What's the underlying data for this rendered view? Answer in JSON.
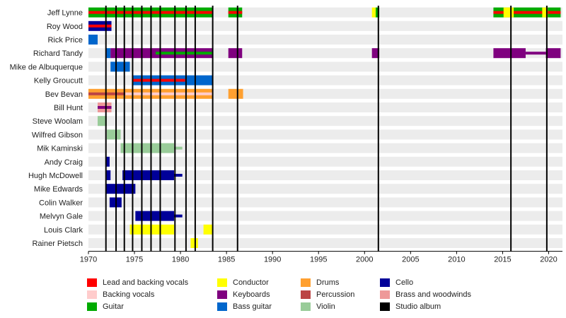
{
  "chart_data": {
    "type": "timeline",
    "title": "",
    "xlabel": "",
    "ylabel": "",
    "xlim": [
      1970,
      2021.5
    ],
    "x_ticks": [
      "1970",
      "1975",
      "1980",
      "1985",
      "1990",
      "1995",
      "2000",
      "2005",
      "2010",
      "2015",
      "2020"
    ],
    "colors": {
      "lead": "#ff0000",
      "backing": "#ffcccc",
      "guitar": "#00aa00",
      "conductor": "#ffff00",
      "keyboards": "#7f007f",
      "bass": "#0066cc",
      "drums": "#ffa030",
      "percussion": "#bb4444",
      "violin": "#99cc99",
      "cello": "#000099",
      "brass": "#ee9999",
      "album": "#000000"
    },
    "members": [
      {
        "name": "Jeff Lynne",
        "spans": [
          {
            "role": "guitar",
            "start": 1970,
            "end": 1983.5
          },
          {
            "role": "lead",
            "start": 1970,
            "end": 1983.5,
            "layer": "line"
          },
          {
            "role": "guitar",
            "start": 1985.2,
            "end": 1986.7
          },
          {
            "role": "lead",
            "start": 1985.2,
            "end": 1986.7,
            "layer": "line"
          },
          {
            "role": "guitar",
            "start": 2001.2,
            "end": 2001.6
          },
          {
            "role": "conductor",
            "start": 2000.8,
            "end": 2001.2
          },
          {
            "role": "guitar",
            "start": 2014,
            "end": 2021.3
          },
          {
            "role": "lead",
            "start": 2014,
            "end": 2021.3,
            "layer": "line"
          },
          {
            "role": "conductor",
            "start": 2015.1,
            "end": 2016.2
          },
          {
            "role": "conductor",
            "start": 2019.3,
            "end": 2019.9
          }
        ]
      },
      {
        "name": "Roy Wood",
        "spans": [
          {
            "role": "cello",
            "start": 1970,
            "end": 1972.5
          },
          {
            "role": "lead",
            "start": 1970,
            "end": 1972.5,
            "layer": "line"
          }
        ]
      },
      {
        "name": "Rick Price",
        "spans": [
          {
            "role": "bass",
            "start": 1970,
            "end": 1971
          }
        ]
      },
      {
        "name": "Richard Tandy",
        "spans": [
          {
            "role": "bass",
            "start": 1971.9,
            "end": 1972.4
          },
          {
            "role": "keyboards",
            "start": 1972.4,
            "end": 1983.5
          },
          {
            "role": "guitar",
            "start": 1977.3,
            "end": 1983.5,
            "layer": "line"
          },
          {
            "role": "keyboards",
            "start": 1985.2,
            "end": 1986.7
          },
          {
            "role": "keyboards",
            "start": 2000.8,
            "end": 2001.6
          },
          {
            "role": "keyboards",
            "start": 2014,
            "end": 2017.5
          },
          {
            "role": "keyboards",
            "start": 2017.5,
            "end": 2019.7,
            "layer": "line"
          },
          {
            "role": "keyboards",
            "start": 2019.7,
            "end": 2021.3
          }
        ]
      },
      {
        "name": "Mike de Albuquerque",
        "spans": [
          {
            "role": "bass",
            "start": 1972.4,
            "end": 1974.5
          }
        ]
      },
      {
        "name": "Kelly Groucutt",
        "spans": [
          {
            "role": "bass",
            "start": 1974.8,
            "end": 1983.5
          },
          {
            "role": "lead",
            "start": 1974.8,
            "end": 1980.5,
            "layer": "line"
          }
        ]
      },
      {
        "name": "Bev Bevan",
        "spans": [
          {
            "role": "drums",
            "start": 1970,
            "end": 1983.5
          },
          {
            "role": "backing",
            "start": 1974,
            "end": 1983.5,
            "layer": "line"
          },
          {
            "role": "percussion",
            "start": 1970,
            "end": 1974,
            "layer": "line"
          },
          {
            "role": "drums",
            "start": 1985.2,
            "end": 1986.8
          }
        ]
      },
      {
        "name": "Bill Hunt",
        "spans": [
          {
            "role": "brass",
            "start": 1971,
            "end": 1972.5
          },
          {
            "role": "keyboards",
            "start": 1971,
            "end": 1972.5,
            "layer": "line"
          }
        ]
      },
      {
        "name": "Steve Woolam",
        "spans": [
          {
            "role": "violin",
            "start": 1971,
            "end": 1972
          }
        ]
      },
      {
        "name": "Wilfred Gibson",
        "spans": [
          {
            "role": "violin",
            "start": 1972,
            "end": 1973.5
          }
        ]
      },
      {
        "name": "Mik Kaminski",
        "spans": [
          {
            "role": "violin",
            "start": 1973.5,
            "end": 1979.3
          },
          {
            "role": "violin",
            "start": 1979.3,
            "end": 1980.2,
            "layer": "line"
          }
        ]
      },
      {
        "name": "Andy Craig",
        "spans": [
          {
            "role": "cello",
            "start": 1971.9,
            "end": 1972.3
          }
        ]
      },
      {
        "name": "Hugh McDowell",
        "spans": [
          {
            "role": "cello",
            "start": 1971.9,
            "end": 1972.4
          },
          {
            "role": "cello",
            "start": 1973.7,
            "end": 1979.3
          },
          {
            "role": "cello",
            "start": 1979.3,
            "end": 1980.2,
            "layer": "line"
          }
        ]
      },
      {
        "name": "Mike Edwards",
        "spans": [
          {
            "role": "cello",
            "start": 1971.9,
            "end": 1975.1
          }
        ]
      },
      {
        "name": "Colin Walker",
        "spans": [
          {
            "role": "cello",
            "start": 1972.3,
            "end": 1973.6
          }
        ]
      },
      {
        "name": "Melvyn Gale",
        "spans": [
          {
            "role": "cello",
            "start": 1975.1,
            "end": 1979.3
          },
          {
            "role": "cello",
            "start": 1979.3,
            "end": 1980.2,
            "layer": "line"
          }
        ]
      },
      {
        "name": "Louis Clark",
        "spans": [
          {
            "role": "conductor",
            "start": 1974.5,
            "end": 1979.3
          },
          {
            "role": "conductor",
            "start": 1982.5,
            "end": 1983.5
          }
        ]
      },
      {
        "name": "Rainer Pietsch",
        "spans": [
          {
            "role": "conductor",
            "start": 1981.1,
            "end": 1981.9
          }
        ]
      }
    ],
    "albums": [
      1971.9,
      1973.0,
      1973.9,
      1974.8,
      1975.8,
      1976.8,
      1977.8,
      1979.4,
      1980.6,
      1981.6,
      1983.5,
      1986.2,
      2001.5,
      2015.9,
      2019.8
    ],
    "legend": [
      {
        "label": "Lead and backing vocals",
        "role": "lead"
      },
      {
        "label": "Backing vocals",
        "role": "backing"
      },
      {
        "label": "Guitar",
        "role": "guitar"
      },
      {
        "label": "Conductor",
        "role": "conductor"
      },
      {
        "label": "Keyboards",
        "role": "keyboards"
      },
      {
        "label": "Bass guitar",
        "role": "bass"
      },
      {
        "label": "Drums",
        "role": "drums"
      },
      {
        "label": "Percussion",
        "role": "percussion"
      },
      {
        "label": "Violin",
        "role": "violin"
      },
      {
        "label": "Cello",
        "role": "cello"
      },
      {
        "label": "Brass and woodwinds",
        "role": "brass"
      },
      {
        "label": "Studio album",
        "role": "album"
      }
    ]
  }
}
